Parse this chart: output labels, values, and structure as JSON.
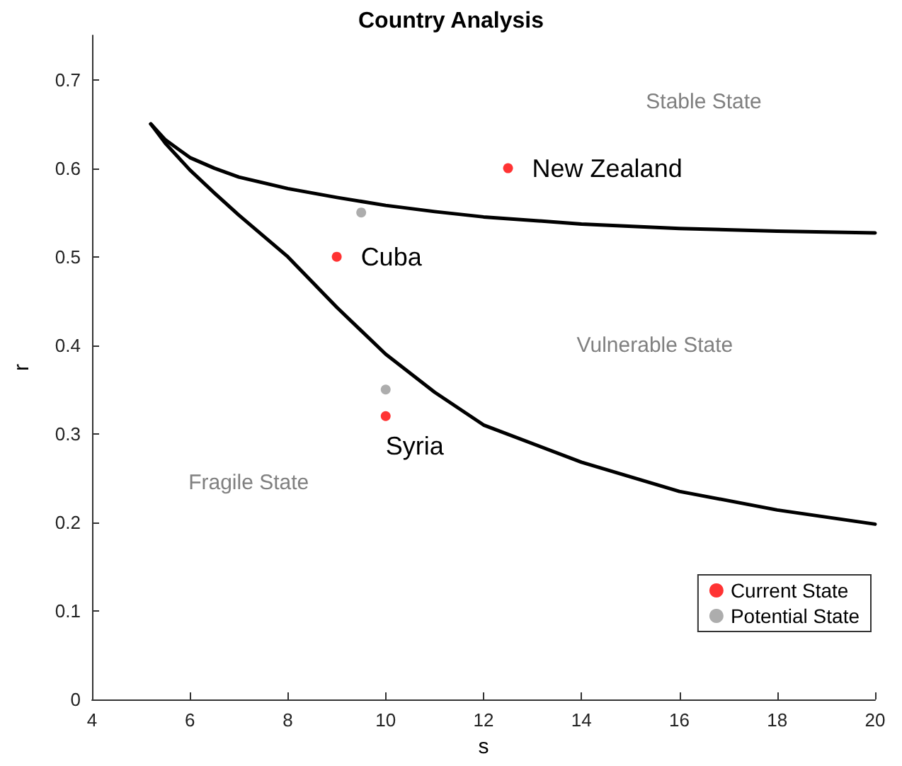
{
  "chart_data": {
    "type": "scatter",
    "title": "Country Analysis",
    "xlabel": "s",
    "ylabel": "r",
    "xlim": [
      4,
      20
    ],
    "xticks": [
      4,
      6,
      8,
      10,
      12,
      14,
      16,
      18,
      20
    ],
    "ylim": [
      0,
      0.75
    ],
    "yticks": [
      0,
      0.1,
      0.2,
      0.3,
      0.4,
      0.5,
      0.6,
      0.7
    ],
    "grid": false,
    "legend": "bottom right",
    "marker": "circle",
    "series": [
      {
        "type": "line",
        "color": "#000000",
        "x": [
          5.2,
          5.5,
          6,
          6.5,
          7,
          8,
          9,
          10,
          11,
          12,
          14,
          16,
          18,
          20
        ],
        "values": [
          0.65,
          0.632,
          0.612,
          0.6,
          0.59,
          0.577,
          0.567,
          0.558,
          0.551,
          0.545,
          0.537,
          0.532,
          0.529,
          0.527
        ],
        "marker": "none"
      },
      {
        "type": "line",
        "color": "#000000",
        "x": [
          5.2,
          5.5,
          6,
          6.5,
          7,
          8,
          9,
          10,
          11,
          12,
          14,
          16,
          18,
          20
        ],
        "values": [
          0.65,
          0.628,
          0.598,
          0.572,
          0.547,
          0.5,
          0.443,
          0.39,
          0.347,
          0.31,
          0.268,
          0.235,
          0.214,
          0.198
        ],
        "marker": "none"
      },
      {
        "name": "Current State",
        "color": "#ff0000",
        "x": [
          12.5,
          9,
          10
        ],
        "values": [
          0.6,
          0.5,
          0.32
        ]
      },
      {
        "name": "Potential State",
        "color": "#999999",
        "x": [
          9.5,
          10
        ],
        "values": [
          0.55,
          0.35
        ]
      }
    ],
    "annotations": [
      {
        "text": "New Zealand",
        "x": 12.5,
        "y": 0.6
      },
      {
        "text": "Cuba",
        "x": 9,
        "y": 0.5
      },
      {
        "text": "Syria",
        "x": 10,
        "y": 0.32
      },
      "Stable State",
      "Vulnerable State",
      "Fragile State"
    ]
  }
}
